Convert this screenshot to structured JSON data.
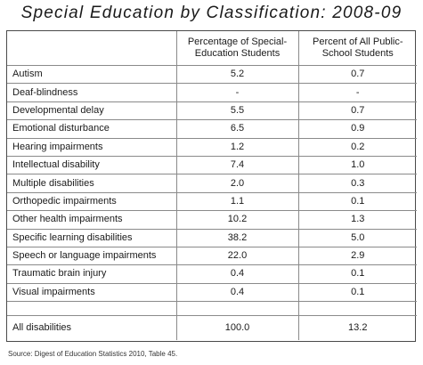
{
  "chart_data": {
    "type": "table",
    "title": "Special Education by Classification: 2008-09",
    "columns": [
      "",
      "Percentage of Special-Education Students",
      "Percent of All Public-School Students"
    ],
    "rows": [
      {
        "label": "Autism",
        "pct_special": "5.2",
        "pct_all": "0.7"
      },
      {
        "label": "Deaf-blindness",
        "pct_special": "-",
        "pct_all": "-"
      },
      {
        "label": "Developmental delay",
        "pct_special": "5.5",
        "pct_all": "0.7"
      },
      {
        "label": "Emotional disturbance",
        "pct_special": "6.5",
        "pct_all": "0.9"
      },
      {
        "label": "Hearing impairments",
        "pct_special": "1.2",
        "pct_all": "0.2"
      },
      {
        "label": "Intellectual disability",
        "pct_special": "7.4",
        "pct_all": "1.0"
      },
      {
        "label": "Multiple disabilities",
        "pct_special": "2.0",
        "pct_all": "0.3"
      },
      {
        "label": "Orthopedic impairments",
        "pct_special": "1.1",
        "pct_all": "0.1"
      },
      {
        "label": "Other health impairments",
        "pct_special": "10.2",
        "pct_all": "1.3"
      },
      {
        "label": "Specific learning disabilities",
        "pct_special": "38.2",
        "pct_all": "5.0"
      },
      {
        "label": "Speech or language impairments",
        "pct_special": "22.0",
        "pct_all": "2.9"
      },
      {
        "label": "Traumatic brain injury",
        "pct_special": "0.4",
        "pct_all": "0.1"
      },
      {
        "label": "Visual impairments",
        "pct_special": "0.4",
        "pct_all": "0.1"
      }
    ],
    "total": {
      "label": "All disabilities",
      "pct_special": "100.0",
      "pct_all": "13.2"
    },
    "source": "Source: Digest of Education Statistics 2010, Table 45."
  }
}
